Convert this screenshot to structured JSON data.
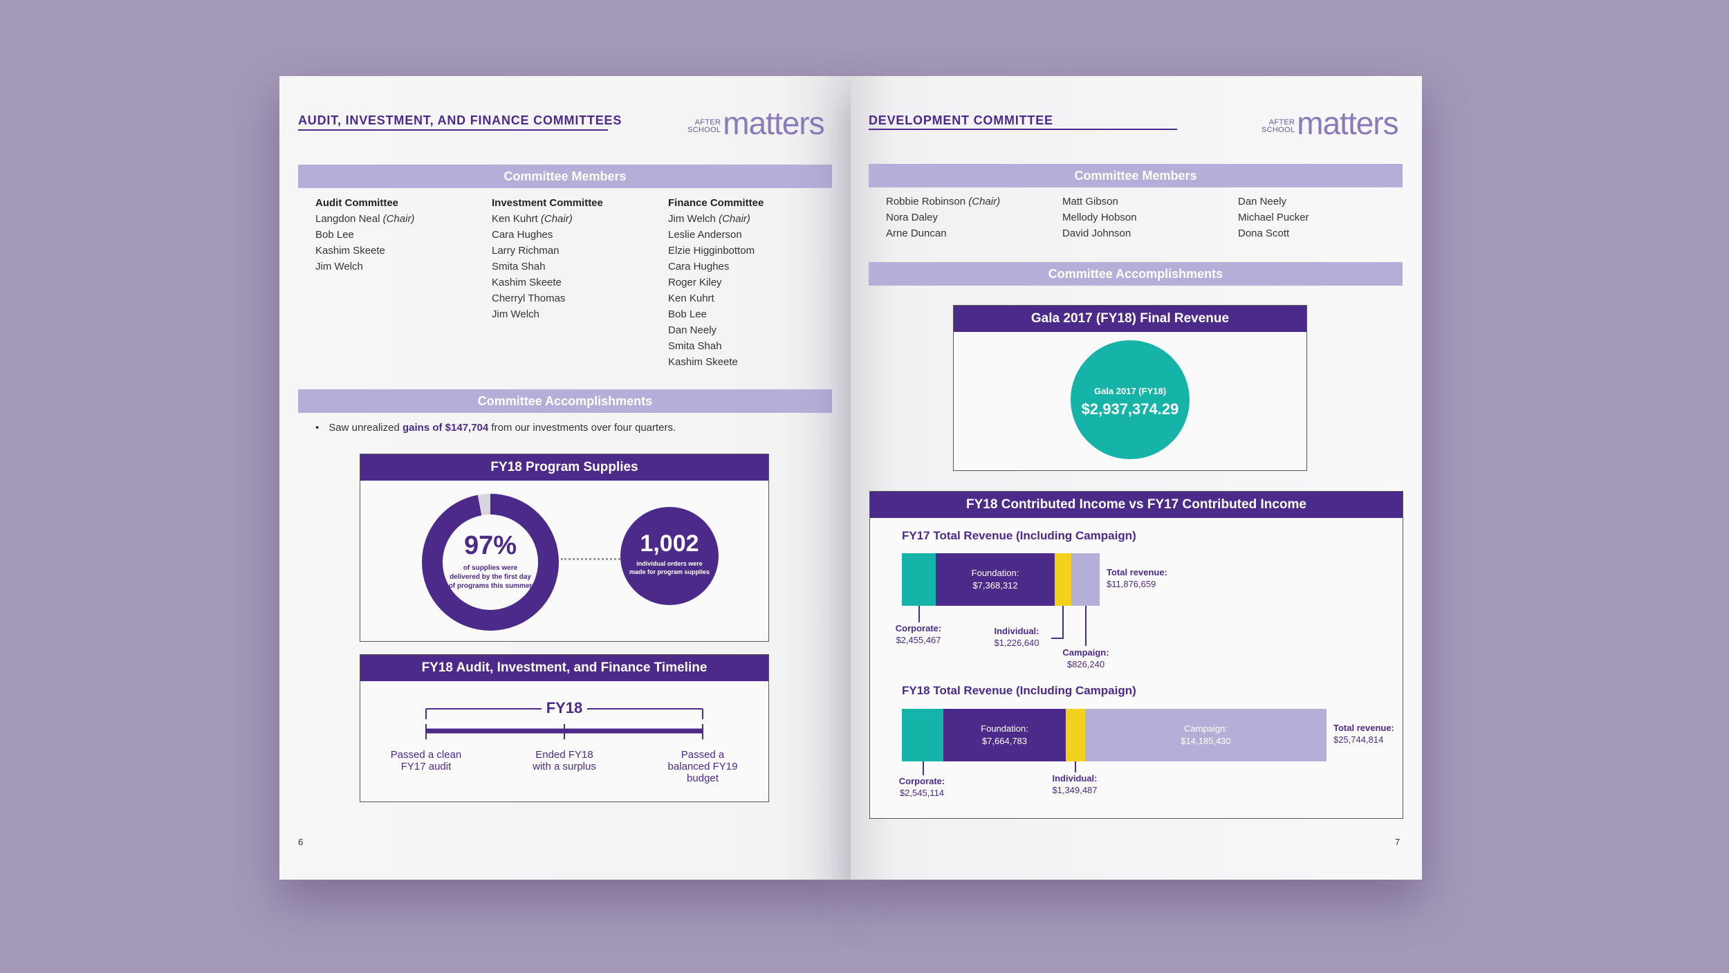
{
  "left": {
    "header": "AUDIT, INVESTMENT, AND FINANCE COMMITTEES",
    "logo_small_1": "AFTER",
    "logo_small_2": "SCHOOL",
    "logo_big": "matters",
    "members_band": "Committee Members",
    "audit": {
      "title": "Audit Committee",
      "chair": "Langdon Neal",
      "chair_tag": "(Chair)",
      "members": [
        "Bob Lee",
        "Kashim Skeete",
        "Jim Welch"
      ]
    },
    "investment": {
      "title": "Investment Committee",
      "chair": "Ken Kuhrt",
      "chair_tag": "(Chair)",
      "members": [
        "Cara Hughes",
        "Larry Richman",
        "Smita Shah",
        "Kashim Skeete",
        "Cherryl Thomas",
        "Jim Welch"
      ]
    },
    "finance": {
      "title": "Finance Committee",
      "chair": "Jim Welch",
      "chair_tag": "(Chair)",
      "members": [
        "Leslie Anderson",
        "Elzie Higginbottom",
        "Cara Hughes",
        "Roger Kiley",
        "Ken Kuhrt",
        "Bob Lee",
        "Dan Neely",
        "Smita Shah",
        "Kashim Skeete"
      ]
    },
    "accomplishments_band": "Committee Accomplishments",
    "bullet_pre": "Saw unrealized ",
    "bullet_bold": "gains of $147,704",
    "bullet_post": " from our investments over four quarters.",
    "supplies": {
      "title": "FY18 Program Supplies",
      "percent": "97%",
      "percent_fraction": 0.97,
      "percent_caption": [
        "of supplies were",
        "delivered by the first day",
        "of programs this summer"
      ],
      "orders": "1,002",
      "orders_caption": [
        "individual orders were",
        "made for program supplies"
      ]
    },
    "timeline": {
      "title": "FY18 Audit, Investment, and Finance Timeline",
      "label": "FY18",
      "events": [
        [
          "Passed a clean",
          "FY17 audit"
        ],
        [
          "Ended FY18",
          "with a surplus"
        ],
        [
          "Passed a",
          "balanced FY19",
          "budget"
        ]
      ]
    },
    "page_number": "6"
  },
  "right": {
    "header": "DEVELOPMENT COMMITTEE",
    "logo_small_1": "AFTER",
    "logo_small_2": "SCHOOL",
    "logo_big": "matters",
    "members_band": "Committee Members",
    "members_col1": [
      "Robbie Robinson",
      "Nora Daley",
      "Arne Duncan"
    ],
    "chair_tag": "(Chair)",
    "members_col2": [
      "Matt Gibson",
      "Mellody Hobson",
      "David Johnson"
    ],
    "members_col3": [
      "Dan Neely",
      "Michael Pucker",
      "Dona Scott"
    ],
    "accomplishments_band": "Committee Accomplishments",
    "gala": {
      "title": "Gala 2017 (FY18) Final Revenue",
      "circle_label": "Gala 2017 (FY18)",
      "amount": "$2,937,374.29"
    },
    "income": {
      "title": "FY18 Contributed Income vs FY17 Contributed Income",
      "fy17": {
        "title": "FY17 Total Revenue (Including Campaign)",
        "corporate_label": "Corporate:",
        "corporate_value": "$2,455,467",
        "foundation_label": "Foundation:",
        "foundation_value": "$7,368,312",
        "individual_label": "Individual:",
        "individual_value": "$1,226,640",
        "campaign_label": "Campaign:",
        "campaign_value": "$826,240",
        "total_label": "Total revenue:",
        "total_value": "$11,876,659"
      },
      "fy18": {
        "title": "FY18 Total Revenue (Including Campaign)",
        "corporate_label": "Corporate:",
        "corporate_value": "$2,545,114",
        "foundation_label": "Foundation:",
        "foundation_value": "$7,664,783",
        "individual_label": "Individual:",
        "individual_value": "$1,349,487",
        "campaign_label": "Campaign:",
        "campaign_value": "$14,185,430",
        "total_label": "Total revenue:",
        "total_value": "$25,744,814"
      }
    },
    "page_number": "7"
  },
  "colors": {
    "purple": "#4b2a8a",
    "lavender": "#b3afd8",
    "teal": "#16b3a8",
    "yellow": "#f2d21c",
    "background": "#a398b8"
  }
}
